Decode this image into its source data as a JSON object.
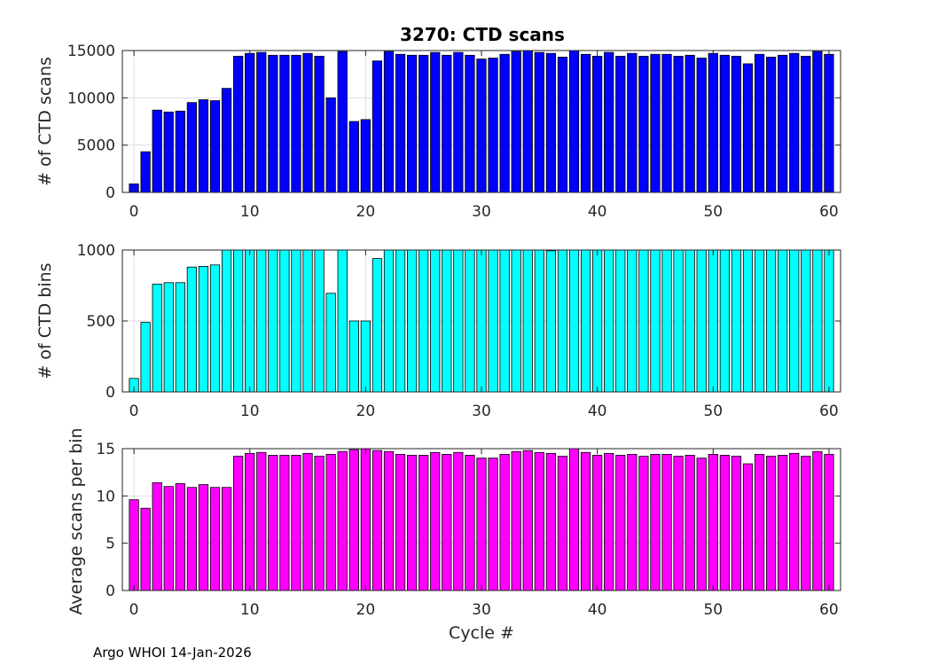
{
  "figure_title": "3270: CTD scans",
  "footer": "Argo WHOI 14-Jan-2026",
  "chart_data": [
    {
      "type": "bar",
      "title": "3270: CTD scans",
      "xlabel": "",
      "ylabel": "# of CTD scans",
      "color": "#0000ff",
      "ylim": [
        0,
        15000
      ],
      "yticks": [
        0,
        5000,
        10000,
        15000
      ],
      "xlim": [
        -1,
        61
      ],
      "xticks": [
        0,
        10,
        20,
        30,
        40,
        50,
        60
      ],
      "x": [
        0,
        1,
        2,
        3,
        4,
        5,
        6,
        7,
        8,
        9,
        10,
        11,
        12,
        13,
        14,
        15,
        16,
        17,
        18,
        19,
        20,
        21,
        22,
        23,
        24,
        25,
        26,
        27,
        28,
        29,
        30,
        31,
        32,
        33,
        34,
        35,
        36,
        37,
        38,
        39,
        40,
        41,
        42,
        43,
        44,
        45,
        46,
        47,
        48,
        49,
        50,
        51,
        52,
        53,
        54,
        55,
        56,
        57,
        58,
        59,
        60
      ],
      "values": [
        900,
        4300,
        8700,
        8500,
        8600,
        9500,
        9800,
        9700,
        11000,
        14400,
        14700,
        14800,
        14500,
        14500,
        14500,
        14700,
        14400,
        10000,
        14900,
        7500,
        7700,
        13900,
        14900,
        14600,
        14500,
        14500,
        14800,
        14500,
        14800,
        14500,
        14100,
        14200,
        14600,
        14900,
        15000,
        14800,
        14700,
        14300,
        15200,
        14600,
        14400,
        14800,
        14400,
        14700,
        14400,
        14600,
        14600,
        14400,
        14500,
        14200,
        14700,
        14500,
        14400,
        13600,
        14600,
        14300,
        14500,
        14700,
        14400,
        14900,
        14600
      ]
    },
    {
      "type": "bar",
      "title": "",
      "xlabel": "",
      "ylabel": "# of CTD bins",
      "color": "#00ffff",
      "ylim": [
        0,
        1000
      ],
      "yticks": [
        0,
        500,
        1000
      ],
      "xlim": [
        -1,
        61
      ],
      "xticks": [
        0,
        10,
        20,
        30,
        40,
        50,
        60
      ],
      "x": [
        0,
        1,
        2,
        3,
        4,
        5,
        6,
        7,
        8,
        9,
        10,
        11,
        12,
        13,
        14,
        15,
        16,
        17,
        18,
        19,
        20,
        21,
        22,
        23,
        24,
        25,
        26,
        27,
        28,
        29,
        30,
        31,
        32,
        33,
        34,
        35,
        36,
        37,
        38,
        39,
        40,
        41,
        42,
        43,
        44,
        45,
        46,
        47,
        48,
        49,
        50,
        51,
        52,
        53,
        54,
        55,
        56,
        57,
        58,
        59,
        60
      ],
      "values": [
        95,
        490,
        760,
        770,
        770,
        880,
        885,
        895,
        1000,
        1000,
        1000,
        1000,
        1000,
        1000,
        1000,
        1000,
        1000,
        695,
        1000,
        500,
        500,
        940,
        1000,
        1000,
        1000,
        1000,
        1000,
        1000,
        1000,
        1000,
        1000,
        1000,
        1000,
        1000,
        1000,
        1000,
        995,
        1000,
        1000,
        1000,
        1000,
        1000,
        1000,
        1000,
        1000,
        1000,
        1000,
        1000,
        1000,
        1000,
        1000,
        1000,
        1000,
        1000,
        1000,
        1000,
        1000,
        1000,
        1000,
        1000,
        1000
      ]
    },
    {
      "type": "bar",
      "title": "",
      "xlabel": "Cycle #",
      "ylabel": "Average scans per bin",
      "color": "#ff00ff",
      "ylim": [
        0,
        15
      ],
      "yticks": [
        0,
        5,
        10,
        15
      ],
      "xlim": [
        -1,
        61
      ],
      "xticks": [
        0,
        10,
        20,
        30,
        40,
        50,
        60
      ],
      "x": [
        0,
        1,
        2,
        3,
        4,
        5,
        6,
        7,
        8,
        9,
        10,
        11,
        12,
        13,
        14,
        15,
        16,
        17,
        18,
        19,
        20,
        21,
        22,
        23,
        24,
        25,
        26,
        27,
        28,
        29,
        30,
        31,
        32,
        33,
        34,
        35,
        36,
        37,
        38,
        39,
        40,
        41,
        42,
        43,
        44,
        45,
        46,
        47,
        48,
        49,
        50,
        51,
        52,
        53,
        54,
        55,
        56,
        57,
        58,
        59,
        60
      ],
      "values": [
        9.6,
        8.7,
        11.4,
        11.0,
        11.3,
        10.9,
        11.2,
        10.9,
        10.9,
        14.2,
        14.5,
        14.6,
        14.3,
        14.3,
        14.3,
        14.5,
        14.2,
        14.4,
        14.7,
        14.9,
        15.2,
        14.8,
        14.7,
        14.4,
        14.3,
        14.3,
        14.6,
        14.4,
        14.6,
        14.3,
        14.0,
        14.0,
        14.4,
        14.7,
        14.8,
        14.6,
        14.5,
        14.2,
        15.0,
        14.6,
        14.3,
        14.5,
        14.3,
        14.4,
        14.2,
        14.4,
        14.4,
        14.2,
        14.3,
        14.0,
        14.4,
        14.3,
        14.2,
        13.4,
        14.4,
        14.2,
        14.3,
        14.5,
        14.2,
        14.7,
        14.4
      ]
    }
  ]
}
